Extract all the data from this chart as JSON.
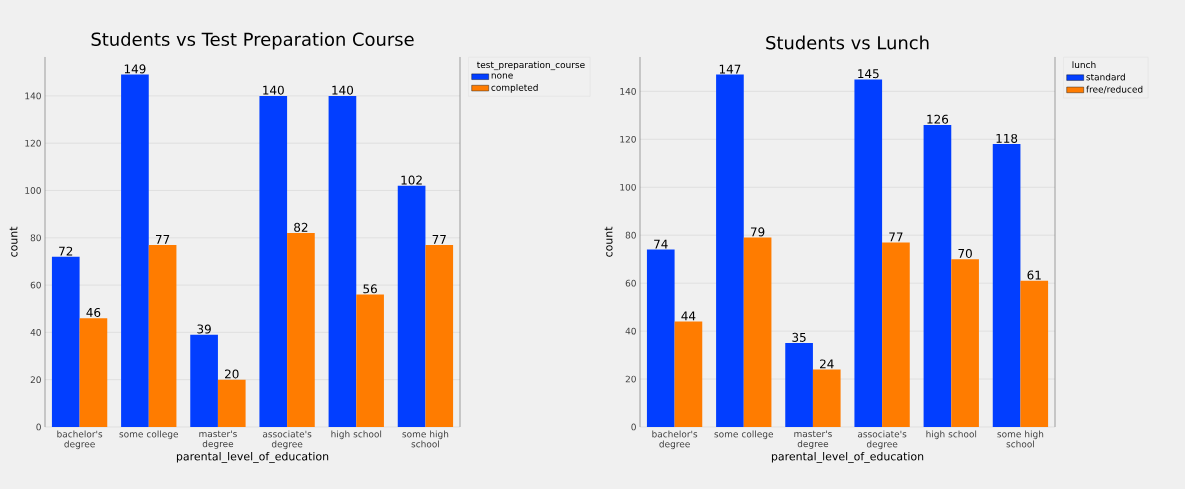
{
  "chart_data": [
    {
      "type": "bar",
      "title": "Students vs Test Preparation Course",
      "xlabel": "parental_level_of_education",
      "ylabel": "count",
      "legend_title": "test_preparation_course",
      "categories": [
        "bachelor's degree",
        "some college",
        "master's degree",
        "associate's degree",
        "high school",
        "some high school"
      ],
      "series": [
        {
          "name": "none",
          "color": "#023eff",
          "values": [
            72,
            149,
            39,
            140,
            140,
            102
          ]
        },
        {
          "name": "completed",
          "color": "#ff7c00",
          "values": [
            46,
            77,
            20,
            82,
            56,
            77
          ]
        }
      ],
      "ylim": [
        0,
        156.45
      ],
      "yticks": [
        0,
        20,
        40,
        60,
        80,
        100,
        120,
        140
      ],
      "grid": "y",
      "legend": "top right",
      "data_labels": true
    },
    {
      "type": "bar",
      "title": "Students vs Lunch",
      "xlabel": "parental_level_of_education",
      "ylabel": "count",
      "legend_title": "lunch",
      "categories": [
        "bachelor's degree",
        "some college",
        "master's degree",
        "associate's degree",
        "high school",
        "some high school"
      ],
      "series": [
        {
          "name": "standard",
          "color": "#023eff",
          "values": [
            74,
            147,
            35,
            145,
            126,
            118
          ]
        },
        {
          "name": "free/reduced",
          "color": "#ff7c00",
          "values": [
            44,
            79,
            24,
            77,
            70,
            61
          ]
        }
      ],
      "ylim": [
        0,
        154.35
      ],
      "yticks": [
        0,
        20,
        40,
        60,
        80,
        100,
        120,
        140
      ],
      "grid": "y",
      "legend": "top right",
      "data_labels": true
    }
  ]
}
